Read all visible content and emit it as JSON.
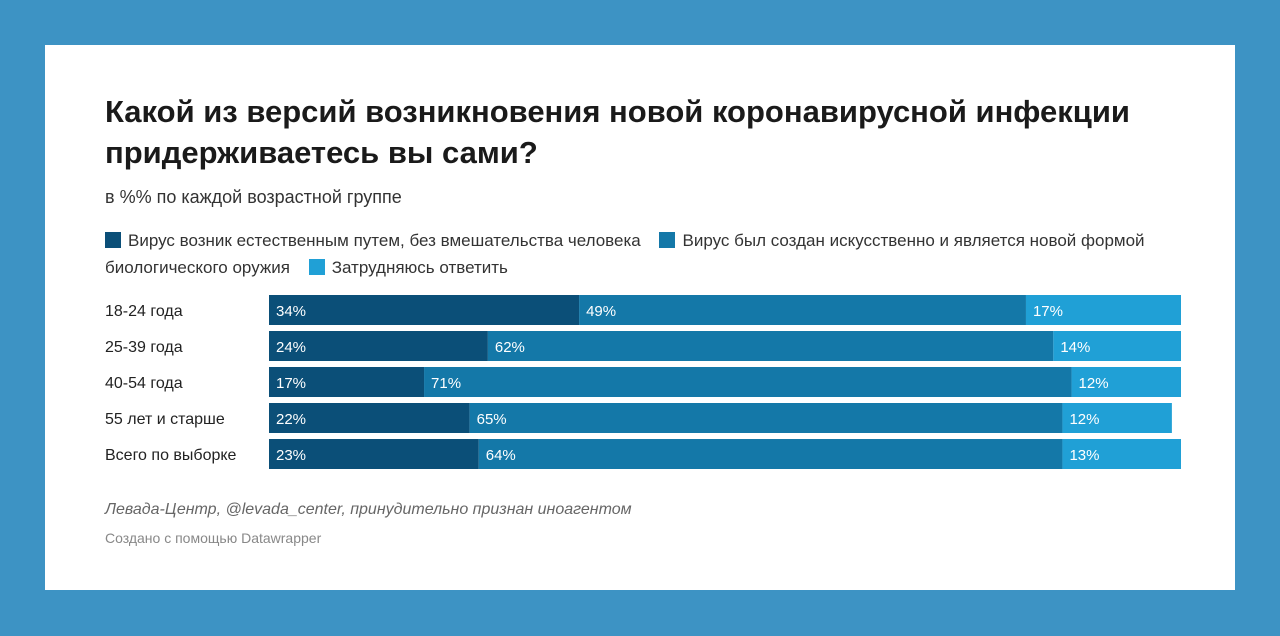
{
  "colors": {
    "background": "#3d93c4",
    "card": "#ffffff",
    "natural": "#0b4f78",
    "artificial": "#1478a8",
    "unsure": "#20a0d6"
  },
  "header": {
    "title": "Какой из версий возникновения новой коронавирусной инфекции придерживаетесь вы сами?",
    "subtitle": "в %% по каждой возрастной группе"
  },
  "legend": [
    {
      "label": "Вирус возник естественным путем, без вмешательства человека",
      "color": "#0b4f78"
    },
    {
      "label": "Вирус был создан искусственно и является новой формой биологического оружия",
      "color": "#1478a8"
    },
    {
      "label": "Затрудняюсь ответить",
      "color": "#20a0d6"
    }
  ],
  "footer": {
    "source": "Левада-Центр, @levada_center, принудительно признан иноагентом",
    "credit": "Создано с помощью Datawrapper"
  },
  "chart_data": {
    "type": "bar",
    "orientation": "horizontal",
    "stacked": true,
    "title": "Какой из версий возникновения новой коронавирусной инфекции придерживаетесь вы сами?",
    "subtitle": "в %% по каждой возрастной группе",
    "categories": [
      "18-24 года",
      "25-39 года",
      "40-54 года",
      "55 лет и старше",
      "Всего по выборке"
    ],
    "series": [
      {
        "name": "Вирус возник естественным путем, без вмешательства человека",
        "values": [
          34,
          24,
          17,
          22,
          23
        ],
        "color": "#0b4f78"
      },
      {
        "name": "Вирус был создан искусственно и является новой формой биологического оружия",
        "values": [
          49,
          62,
          71,
          65,
          64
        ],
        "color": "#1478a8"
      },
      {
        "name": "Затрудняюсь ответить",
        "values": [
          17,
          14,
          12,
          12,
          13
        ],
        "color": "#20a0d6"
      }
    ],
    "value_suffix": "%",
    "xlim": [
      0,
      100
    ],
    "grid": false,
    "legend_position": "top-left"
  }
}
